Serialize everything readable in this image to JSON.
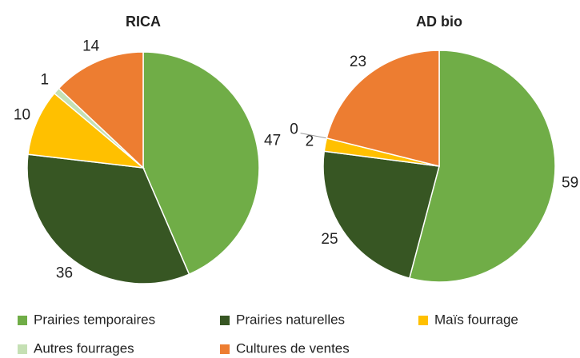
{
  "legend": {
    "categories": [
      "Prairies temporaires",
      "Prairies naturelles",
      "Maïs fourrage",
      "Autres fourrages",
      "Cultures de ventes"
    ],
    "colors": [
      "#70ad47",
      "#375623",
      "#ffc000",
      "#c5e0b4",
      "#ed7d31"
    ]
  },
  "chart_data": [
    {
      "type": "pie",
      "title": "RICA",
      "values": [
        47,
        36,
        10,
        1,
        14
      ]
    },
    {
      "type": "pie",
      "title": "AD bio",
      "values": [
        59,
        25,
        2,
        0,
        23
      ]
    }
  ]
}
